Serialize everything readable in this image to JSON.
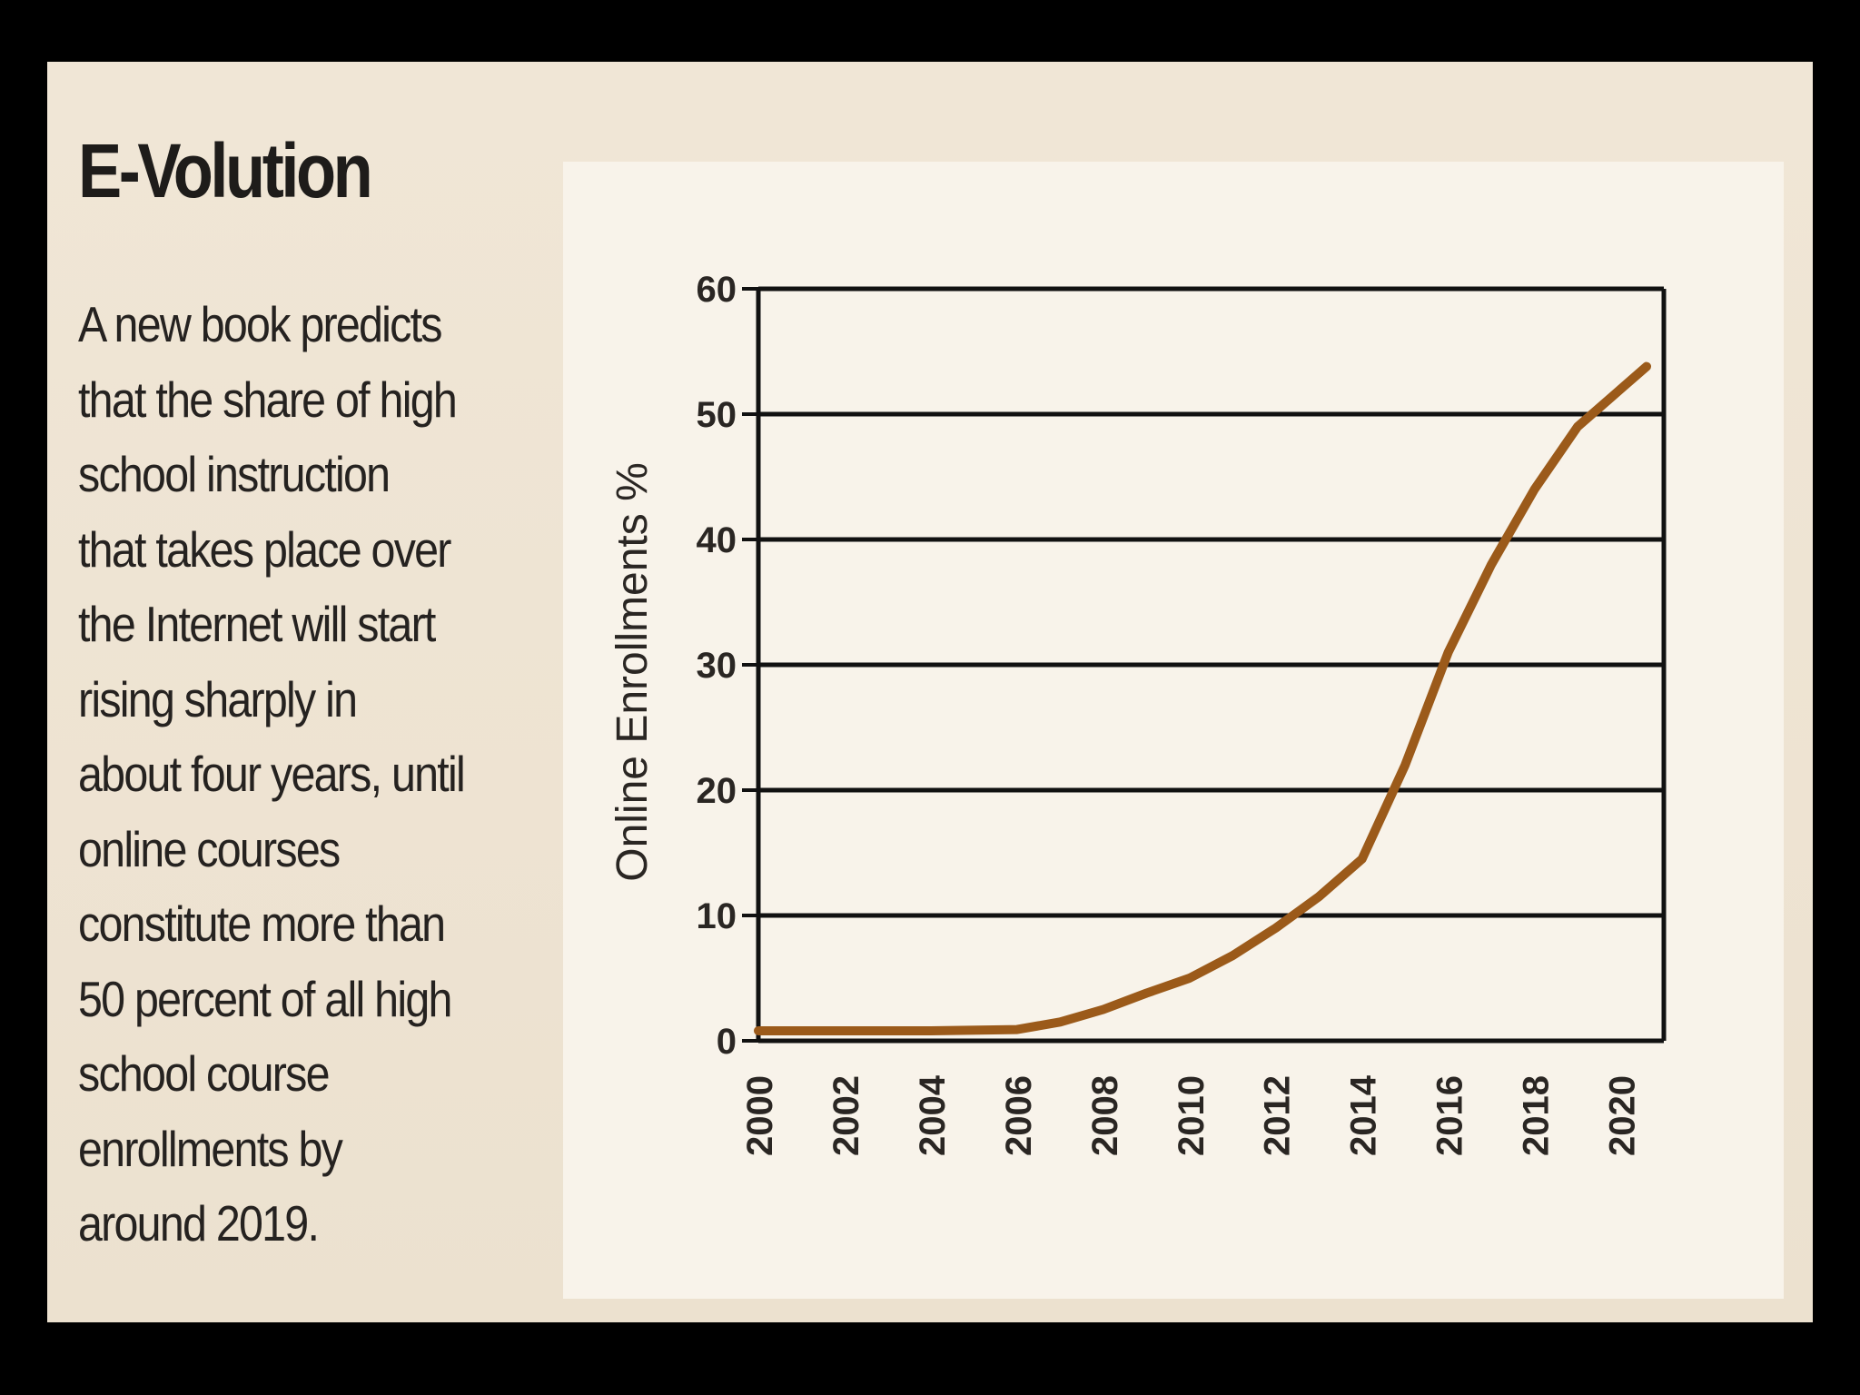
{
  "title": "E-Volution",
  "blurb": [
    "A new book predicts",
    "that the share of high",
    "school instruction",
    "that takes place over",
    "the Internet will start",
    "rising sharply in",
    "about four years, until",
    "online courses",
    "constitute more than",
    "50 percent of all high",
    "school course",
    "enrollments by",
    "around 2019."
  ],
  "colors": {
    "line": "#9b5a1a",
    "grid": "#111111",
    "panel": "#efe4d4",
    "plot_bg": "#f8f3ea"
  },
  "chart_data": {
    "type": "line",
    "title": "",
    "xlabel": "",
    "ylabel": "Online Enrollments %",
    "x_ticks": [
      "2000",
      "2002",
      "2004",
      "2006",
      "2008",
      "2010",
      "2012",
      "2014",
      "2016",
      "2018",
      "2020"
    ],
    "y_ticks": [
      "0",
      "10",
      "20",
      "30",
      "40",
      "50",
      "60"
    ],
    "xlim": [
      2000,
      2021
    ],
    "ylim": [
      0,
      60
    ],
    "grid": "horizontal",
    "series": [
      {
        "name": "Online Enrollments %",
        "x": [
          2000,
          2002,
          2004,
          2006,
          2007,
          2008,
          2009,
          2010,
          2011,
          2012,
          2013,
          2014,
          2015,
          2016,
          2017,
          2018,
          2019,
          2020,
          2020.6
        ],
        "y": [
          0.8,
          0.8,
          0.8,
          0.9,
          1.5,
          2.5,
          3.8,
          5.0,
          6.8,
          9.0,
          11.5,
          14.5,
          22.0,
          31.0,
          38.0,
          44.0,
          49.0,
          52.0,
          53.8
        ]
      }
    ]
  }
}
